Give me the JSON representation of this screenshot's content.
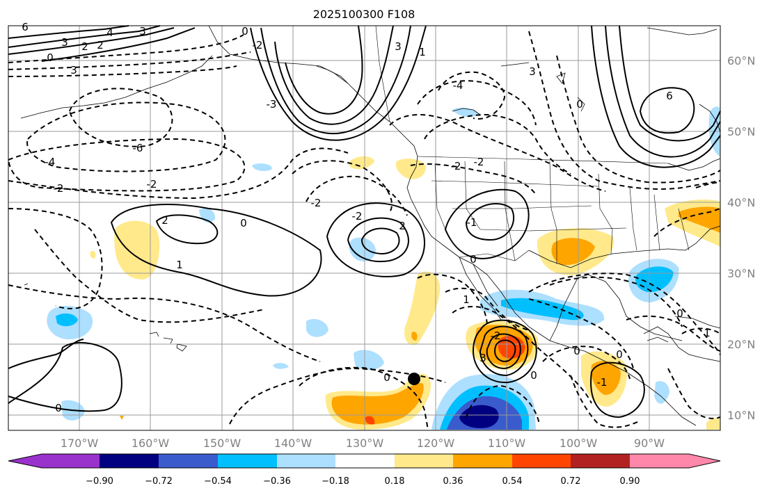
{
  "title": "2025100300 F108",
  "colors": {
    "purple": "#9932CC",
    "navy": "#000080",
    "blue_dark": "#3A5BCC",
    "blue": "#00BFFF",
    "blue_light": "#ADDFFF",
    "white": "#FFFFFF",
    "yellow": "#FFE98A",
    "orange": "#FFA500",
    "red_orange": "#FF4500",
    "dark_red": "#B22222",
    "pink": "#FF88AA"
  },
  "map": {
    "lat_labels": [
      "60°N",
      "50°N",
      "40°N",
      "30°N",
      "20°N",
      "10°N"
    ],
    "lon_labels": [
      "170°W",
      "160°W",
      "150°W",
      "140°W",
      "130°W",
      "120°W",
      "110°W",
      "100°W",
      "90°W"
    ],
    "contour_labels": [
      "6",
      "4",
      "3",
      "2",
      "2",
      "0",
      "3",
      "3",
      "0",
      "-2",
      "-3",
      "3",
      "1",
      "-4",
      "0",
      "3",
      "6",
      "-6",
      "-4",
      "-2",
      "-2",
      "-2",
      "-2",
      "-2",
      "2",
      "0",
      "1",
      "2",
      "-2",
      "-1",
      "0",
      "1",
      "0",
      "0",
      "-2",
      "3",
      "0",
      "0",
      "-1",
      "0",
      "1",
      "0"
    ]
  },
  "colorbar": {
    "ticks": [
      "−0.90",
      "−0.72",
      "−0.54",
      "−0.36",
      "−0.18",
      "0.18",
      "0.36",
      "0.54",
      "0.72",
      "0.90"
    ]
  }
}
